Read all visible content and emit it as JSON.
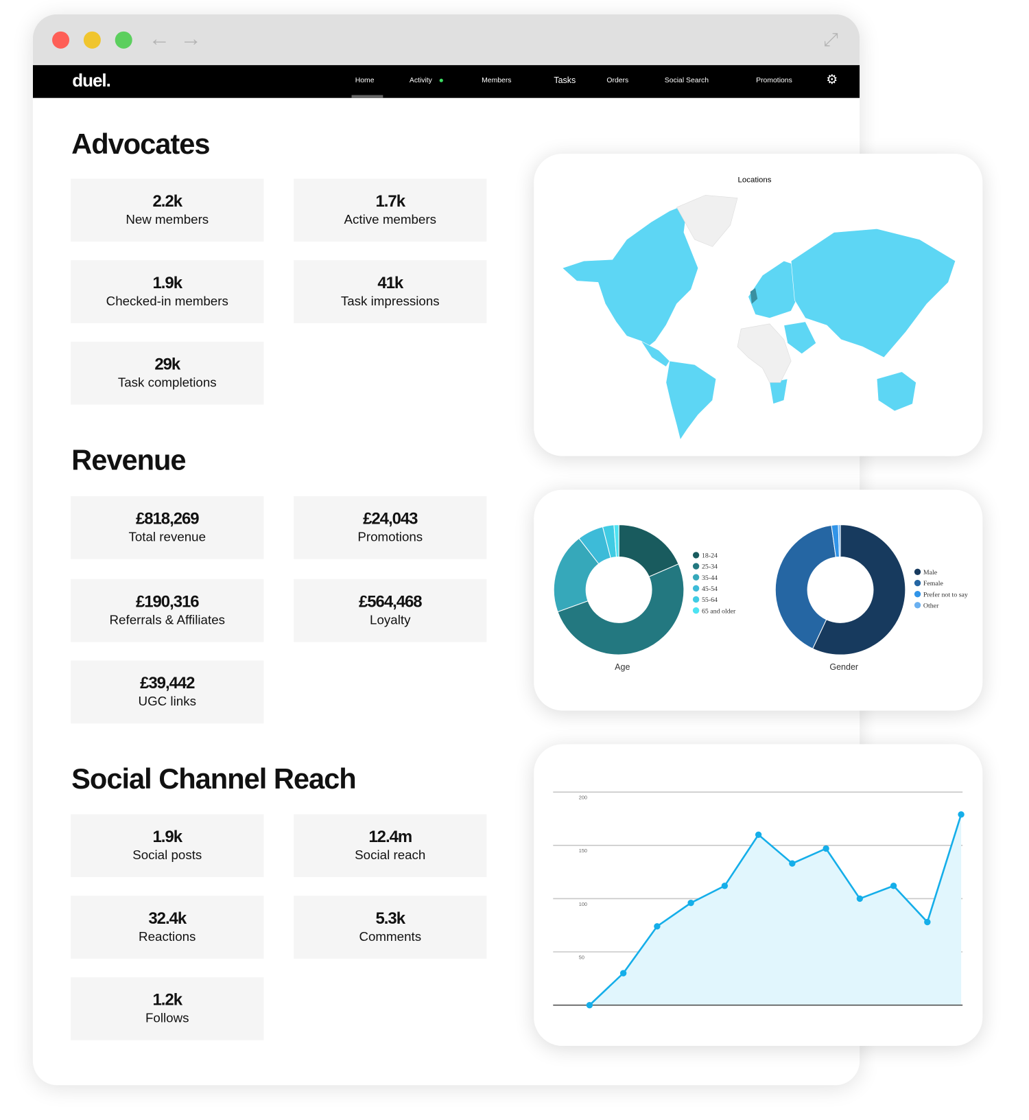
{
  "window": {
    "controls": {
      "close_color": "#fe5f57",
      "minimize_color": "#f0c52e",
      "maximize_color": "#5ccf5e"
    },
    "back_icon": "arrow-left-icon",
    "forward_icon": "arrow-right-icon",
    "expand_icon": "expand-icon"
  },
  "nav": {
    "logo": "duel.",
    "items": [
      {
        "label": "Home",
        "active": true
      },
      {
        "label": "Activity",
        "badge": true
      },
      {
        "label": "Members"
      },
      {
        "label": "Tasks"
      },
      {
        "label": "Orders"
      },
      {
        "label": "Social Search"
      },
      {
        "label": "Promotions"
      }
    ],
    "settings_icon": "gear-icon"
  },
  "advocates": {
    "title": "Advocates",
    "stats": [
      {
        "value": "2.2k",
        "label": "New members"
      },
      {
        "value": "1.7k",
        "label": "Active members"
      },
      {
        "value": "1.9k",
        "label": "Checked-in members"
      },
      {
        "value": "41k",
        "label": "Task impressions"
      },
      {
        "value": "29k",
        "label": "Task completions"
      }
    ]
  },
  "revenue": {
    "title": "Revenue",
    "stats": [
      {
        "value": "£818,269",
        "label": "Total revenue"
      },
      {
        "value": "£24,043",
        "label": "Promotions"
      },
      {
        "value": "£190,316",
        "label": "Referrals & Affiliates"
      },
      {
        "value": "£564,468",
        "label": "Loyalty"
      },
      {
        "value": "£39,442",
        "label": "UGC links"
      }
    ]
  },
  "social": {
    "title": "Social Channel Reach",
    "stats": [
      {
        "value": "1.9k",
        "label": "Social posts"
      },
      {
        "value": "12.4m",
        "label": "Social reach"
      },
      {
        "value": "32.4k",
        "label": "Reactions"
      },
      {
        "value": "5.3k",
        "label": "Comments"
      },
      {
        "value": "1.2k",
        "label": "Follows"
      }
    ]
  },
  "map": {
    "title": "Locations",
    "fill_color": "#5dd6f4",
    "highlight_color": "#3a8fa0"
  },
  "chart_data": [
    {
      "type": "pie",
      "title": "Age",
      "donut": true,
      "categories": [
        "18-24",
        "25-34",
        "35-44",
        "45-54",
        "55-64",
        "65 and older"
      ],
      "values": [
        18.5,
        51,
        20,
        6.5,
        2.8,
        1.2
      ],
      "colors": [
        "#195b5e",
        "#237880",
        "#36a8ba",
        "#3dbbd8",
        "#40cbe3",
        "#4ee3f2"
      ],
      "legend": "right"
    },
    {
      "type": "pie",
      "title": "Gender",
      "donut": true,
      "categories": [
        "Male",
        "Female",
        "Prefer not to say",
        "Other"
      ],
      "values": [
        57,
        40.8,
        1.7,
        0.5
      ],
      "colors": [
        "#173a5e",
        "#2566a3",
        "#3194e8",
        "#6ab0f0"
      ],
      "legend": "right"
    },
    {
      "type": "area",
      "y": [
        0,
        30,
        74,
        96,
        112,
        160,
        133,
        147,
        100,
        112,
        78,
        179
      ],
      "yticks": [
        50,
        100,
        150,
        200
      ],
      "ylim": [
        0,
        200
      ],
      "grid": true,
      "color": "#15aee9",
      "fill": "#e1f6fd"
    }
  ]
}
